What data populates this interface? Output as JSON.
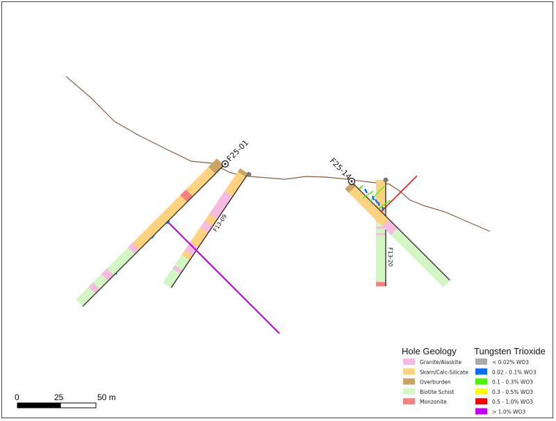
{
  "holes": [
    {
      "id": "F25-01",
      "collar_marker": "target-collar-icon"
    },
    {
      "id": "F13-09",
      "collar_marker": "gray-dot-collar-icon"
    },
    {
      "id": "F25-14",
      "collar_marker": "target-collar-icon"
    },
    {
      "id": "F13-20",
      "collar_marker": "gray-dot-collar-icon"
    }
  ],
  "colors": {
    "topography": "#8B5A3C",
    "granite": "#F8BBE0",
    "skarn": "#FFD27F",
    "overburden": "#C9A463",
    "biotite": "#D2F7C2",
    "monzonite": "#F7817F"
  },
  "legend_geology": {
    "title": "Hole Geology",
    "items": [
      {
        "label": "Granite/Alaskite",
        "color": "#F8BBE0"
      },
      {
        "label": "Skarn/Calc-Silicate",
        "color": "#FFD27F"
      },
      {
        "label": "Overburden",
        "color": "#C9A463"
      },
      {
        "label": "Biotite Schist",
        "color": "#D2F7C2"
      },
      {
        "label": "Monzonite",
        "color": "#F7817F"
      }
    ]
  },
  "legend_wo3": {
    "title": "Tungsten Trioxide",
    "items": [
      {
        "label": "< 0.02% WO3",
        "color": "#AAAAAA"
      },
      {
        "label": "0.02 - 0.1% WO3",
        "color": "#0A6CFF"
      },
      {
        "label": "0.1 - 0.3% WO3",
        "color": "#4CF40C"
      },
      {
        "label": "0.3 - 0.5% WO3",
        "color": "#FFFF00"
      },
      {
        "label": "0.5 - 1.0% WO3",
        "color": "#FF0000"
      },
      {
        "label": "> 1.0% WO3",
        "color": "#C000FF"
      }
    ]
  },
  "scale_bar": {
    "labels": [
      "0",
      "25",
      "50 m"
    ]
  }
}
